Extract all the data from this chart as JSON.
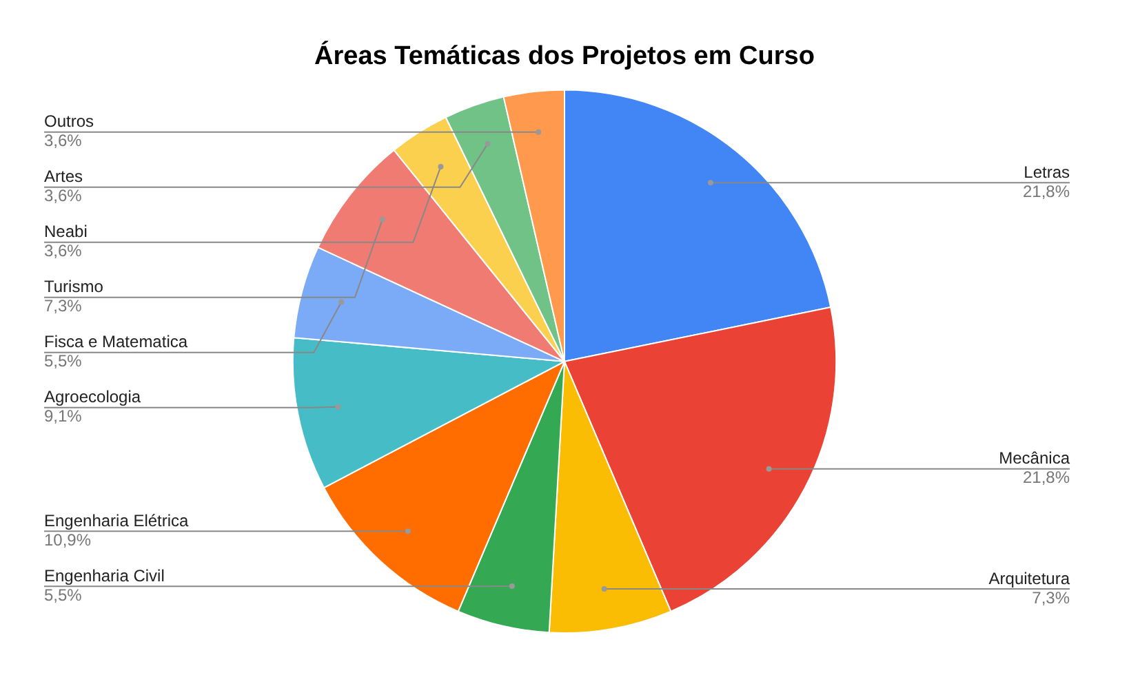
{
  "chart_data": {
    "type": "pie",
    "title": "Áreas Temáticas dos Projetos em Curso",
    "categories": [
      "Letras",
      "Mecânica",
      "Arquitetura",
      "Engenharia Civil",
      "Engenharia Elétrica",
      "Agroecologia",
      "Fisca e Matematica",
      "Turismo",
      "Neabi",
      "Artes",
      "Outros"
    ],
    "values": [
      21.8,
      21.8,
      7.3,
      5.5,
      10.9,
      9.1,
      5.5,
      7.3,
      3.6,
      3.6,
      3.6
    ],
    "value_labels": [
      "21,8%",
      "21,8%",
      "7,3%",
      "5,5%",
      "10,9%",
      "9,1%",
      "5,5%",
      "7,3%",
      "3,6%",
      "3,6%",
      "3,6%"
    ],
    "colors": [
      "#4285f4",
      "#ea4335",
      "#fbbc04",
      "#34a853",
      "#ff6d01",
      "#46bdc6",
      "#7baaf7",
      "#f07b72",
      "#fcd04f",
      "#71c287",
      "#ff994d"
    ],
    "legend": false
  }
}
